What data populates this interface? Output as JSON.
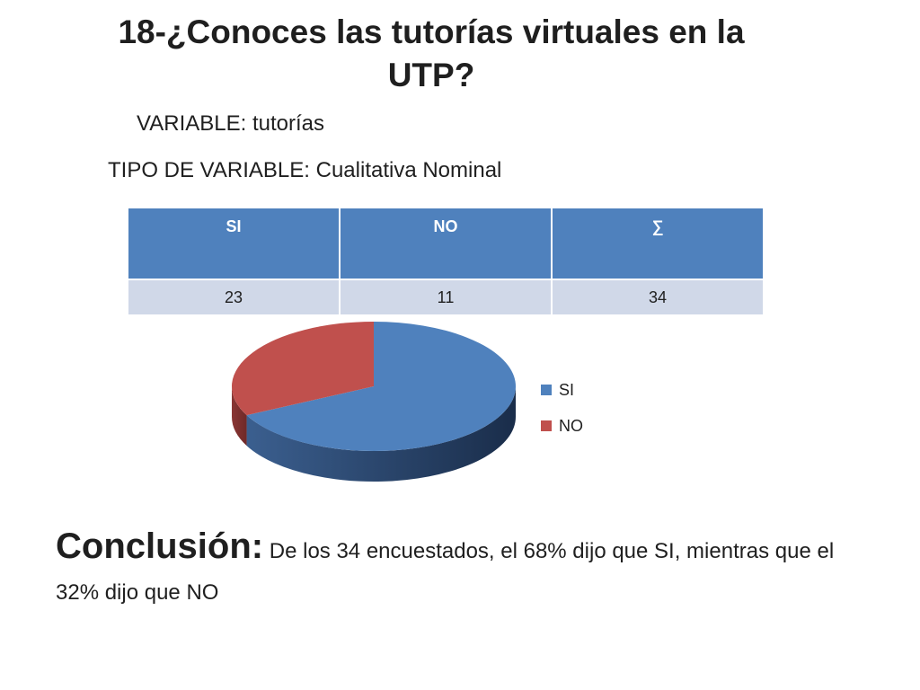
{
  "slide": {
    "title": "18-¿Conoces las tutorías virtuales en la UTP?",
    "variable": "VARIABLE: tutorías",
    "variable_type": "TIPO DE VARIABLE: Cualitativa  Nominal"
  },
  "table": {
    "headers": [
      "SI",
      "NO",
      "∑"
    ],
    "values": [
      "23",
      "11",
      "34"
    ]
  },
  "colors": {
    "si": "#4f81bd",
    "no": "#c0504d",
    "header": "#4f81bd",
    "row": "#d0d8e8"
  },
  "chart_data": {
    "type": "pie",
    "style": "3d",
    "categories": [
      "SI",
      "NO"
    ],
    "values": [
      23,
      11
    ],
    "colors": [
      "#4f81bd",
      "#c0504d"
    ],
    "legend": "right"
  },
  "conclusion": {
    "label": "Conclusión:",
    "text": " De los 34 encuestados, el  68% dijo que SI, mientras que el  32% dijo que NO"
  }
}
